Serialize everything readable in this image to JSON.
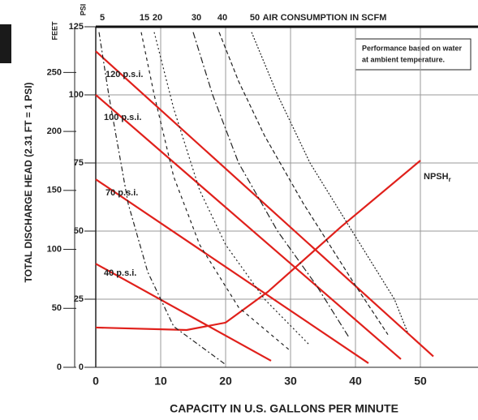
{
  "chart_data": {
    "type": "line",
    "top_label": "AIR CONSUMPTION IN SCFM",
    "x_label": "CAPACITY IN U.S. GALLONS PER MINUTE",
    "y_label": "TOTAL DISCHARGE HEAD (2.31 FT = 1 PSI)",
    "y_axis_label": "PSI",
    "y2_axis_label": "FEET",
    "note": [
      "Performance based on water",
      "at ambient temperature."
    ],
    "xlim": [
      0,
      60
    ],
    "xticks": [
      0,
      10,
      20,
      30,
      40,
      50
    ],
    "ylim": [
      0,
      125
    ],
    "yticks": [
      0,
      25,
      50,
      75,
      100,
      125
    ],
    "y2lim": [
      0,
      288.75
    ],
    "y2ticks": [
      0,
      50,
      100,
      150,
      200,
      250
    ],
    "grid": true,
    "series": [
      {
        "name": "120 p.s.i.",
        "color": "#e0201b",
        "dash": "none",
        "x": [
          0,
          52
        ],
        "values": [
          116,
          4
        ]
      },
      {
        "name": "100 p.s.i.",
        "color": "#e0201b",
        "dash": "none",
        "x": [
          0,
          47
        ],
        "values": [
          100,
          3
        ]
      },
      {
        "name": "70 p.s.i.",
        "color": "#e0201b",
        "dash": "none",
        "x": [
          0,
          42
        ],
        "values": [
          69,
          1.5
        ]
      },
      {
        "name": "40 p.s.i.",
        "color": "#e0201b",
        "dash": "none",
        "x": [
          0,
          27
        ],
        "values": [
          38,
          2.4
        ]
      },
      {
        "name": "NPSH",
        "name_sub": "r",
        "color": "#e0201b",
        "dash": "none",
        "x": [
          0,
          14,
          20,
          26.5,
          37.75,
          50
        ],
        "values": [
          14.6,
          13.7,
          16.4,
          27.7,
          51.5,
          75.9
        ]
      },
      {
        "name": "5",
        "color": "#222222",
        "dash": "6 3 2 3",
        "x": [
          0.5,
          2,
          5,
          8,
          12,
          20
        ],
        "values": [
          123,
          100,
          60,
          35,
          15,
          1
        ]
      },
      {
        "name": "15",
        "color": "#222222",
        "dash": "4 4",
        "x": [
          7,
          9,
          12,
          16,
          22,
          30
        ],
        "values": [
          123,
          100,
          70,
          45,
          22,
          6
        ]
      },
      {
        "name": "20",
        "color": "#222222",
        "dash": "2 3",
        "x": [
          9,
          12,
          16,
          20,
          26,
          33
        ],
        "values": [
          123,
          95,
          65,
          45,
          25,
          8
        ]
      },
      {
        "name": "30",
        "color": "#222222",
        "dash": "8 3 2 3",
        "x": [
          15,
          18,
          22,
          28,
          34,
          39
        ],
        "values": [
          123,
          100,
          75,
          50,
          30,
          11
        ]
      },
      {
        "name": "40",
        "color": "#222222",
        "dash": "5 3",
        "x": [
          19,
          22,
          26,
          32,
          40,
          45
        ],
        "values": [
          123,
          105,
          85,
          60,
          30,
          12
        ]
      },
      {
        "name": "50",
        "color": "#222222",
        "dash": "2 2",
        "x": [
          24,
          28,
          33,
          40,
          46,
          48
        ],
        "values": [
          123,
          100,
          75,
          48,
          25,
          13
        ]
      }
    ]
  }
}
